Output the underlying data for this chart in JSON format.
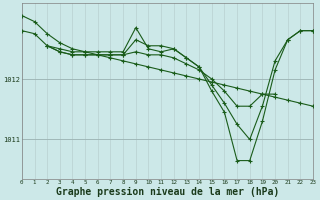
{
  "background_color": "#cce8e8",
  "grid_color_v": "#b8d0d0",
  "grid_color_h": "#a0b8b8",
  "line_color": "#1a5c1a",
  "xlabel": "Graphe pression niveau de la mer (hPa)",
  "xlabel_fontsize": 7,
  "xticks": [
    0,
    1,
    2,
    3,
    4,
    5,
    6,
    7,
    8,
    9,
    10,
    11,
    12,
    13,
    14,
    15,
    16,
    17,
    18,
    19,
    20,
    21,
    22,
    23
  ],
  "yticks": [
    1011,
    1012
  ],
  "ylim": [
    1010.35,
    1013.25
  ],
  "xlim": [
    0,
    23
  ],
  "series": [
    {
      "x": [
        0,
        1,
        2,
        3,
        4,
        5,
        6,
        7,
        8,
        9,
        10,
        11,
        12,
        13,
        14,
        15,
        16,
        17,
        18,
        19,
        20,
        21,
        22,
        23
      ],
      "y": [
        1013.05,
        1012.95,
        1012.75,
        1012.6,
        1012.5,
        1012.45,
        1012.4,
        1012.35,
        1012.3,
        1012.25,
        1012.2,
        1012.15,
        1012.1,
        1012.05,
        1012.0,
        1011.95,
        1011.9,
        1011.85,
        1011.8,
        1011.75,
        1011.7,
        1011.65,
        1011.6,
        1011.55
      ]
    },
    {
      "x": [
        0,
        1,
        2,
        3,
        4,
        5,
        6,
        7,
        8,
        9,
        10,
        11,
        12,
        13,
        14,
        15,
        16,
        17,
        18,
        19,
        20,
        21,
        22,
        23
      ],
      "y": [
        1012.8,
        1012.75,
        1012.55,
        1012.45,
        1012.4,
        1012.4,
        1012.4,
        1012.4,
        1012.4,
        1012.65,
        1012.55,
        1012.55,
        1012.5,
        1012.35,
        1012.2,
        1011.9,
        1011.6,
        1011.25,
        1011.0,
        1011.55,
        1012.3,
        1012.65,
        1012.8,
        1012.8
      ]
    },
    {
      "x": [
        2,
        3,
        4,
        5,
        6,
        7,
        8,
        9,
        10,
        11,
        12,
        13,
        14,
        15,
        16,
        17,
        18,
        19,
        20,
        21,
        22,
        23
      ],
      "y": [
        1012.55,
        1012.5,
        1012.45,
        1012.45,
        1012.45,
        1012.45,
        1012.45,
        1012.85,
        1012.5,
        1012.45,
        1012.5,
        1012.35,
        1012.2,
        1011.8,
        1011.45,
        1010.65,
        1010.65,
        1011.3,
        1012.15,
        1012.65,
        1012.8,
        1012.8
      ]
    },
    {
      "x": [
        2,
        3,
        4,
        5,
        6,
        7,
        8,
        9,
        10,
        11,
        12,
        13,
        14,
        15,
        16,
        17,
        18,
        19,
        20
      ],
      "y": [
        1012.55,
        1012.45,
        1012.4,
        1012.4,
        1012.4,
        1012.4,
        1012.4,
        1012.45,
        1012.4,
        1012.4,
        1012.35,
        1012.25,
        1012.15,
        1012.0,
        1011.8,
        1011.55,
        1011.55,
        1011.75,
        1011.75
      ]
    }
  ]
}
